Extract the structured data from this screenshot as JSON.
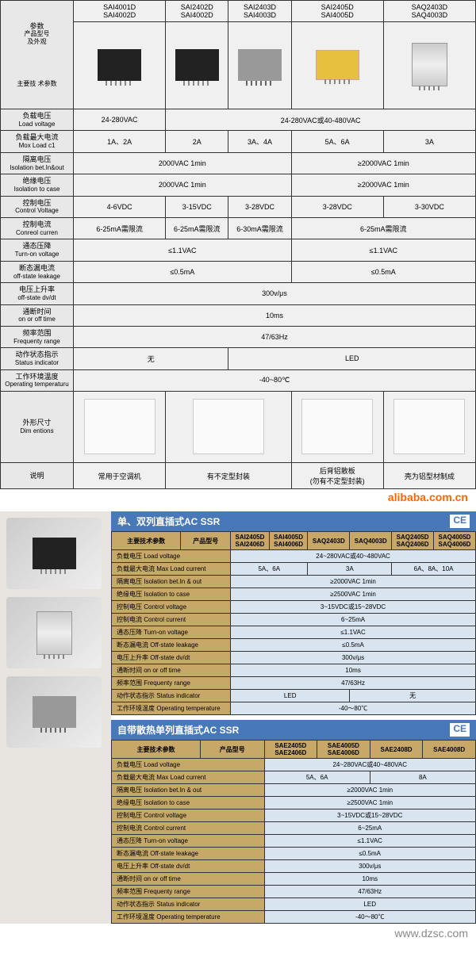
{
  "main": {
    "paramHeader": {
      "cn": "参数",
      "sub1": "产品型号",
      "sub2": "及外观",
      "sub3": "主要技\n术参数"
    },
    "models": [
      {
        "line1": "SAI4001D",
        "line2": "SAI4002D",
        "imgClass": "relay-black"
      },
      {
        "line1": "SAI2402D",
        "line2": "SAI4002D",
        "imgClass": "relay-black"
      },
      {
        "line1": "SAI2403D",
        "line2": "SAI4003D",
        "imgClass": "relay-gray"
      },
      {
        "line1": "SAI2405D",
        "line2": "SAI4005D",
        "imgClass": "relay-yellow"
      },
      {
        "line1": "SAQ2403D",
        "line2": "SAQ4003D",
        "imgClass": "relay-silver"
      }
    ],
    "rows": [
      {
        "cn": "负载电压",
        "en": "Load voltage",
        "v": [
          "24-280VAC",
          "",
          "24-280VAC或40-480VAC",
          "",
          ""
        ],
        "spans": [
          1,
          0,
          4,
          0,
          0
        ]
      },
      {
        "cn": "负载最大电流",
        "en": "Mox Load c1",
        "v": [
          "1A、2A",
          "2A",
          "3A、4A",
          "5A、6A",
          "3A"
        ],
        "spans": [
          1,
          1,
          1,
          1,
          1
        ]
      },
      {
        "cn": "隔离电压",
        "en": "Isolation bet.In&out",
        "v": [
          "2000VAC 1min",
          "",
          "",
          "≥2000VAC 1min",
          ""
        ],
        "spans": [
          3,
          0,
          0,
          2,
          0
        ]
      },
      {
        "cn": "绝缘电压",
        "en": "Isolation to case",
        "v": [
          "2000VAC 1min",
          "",
          "",
          "≥2000VAC 1min",
          ""
        ],
        "spans": [
          3,
          0,
          0,
          2,
          0
        ]
      },
      {
        "cn": "控制电压",
        "en": "Control Voltage",
        "v": [
          "4-6VDC",
          "3-15VDC",
          "3-28VDC",
          "3-28VDC",
          "3-30VDC"
        ],
        "spans": [
          1,
          1,
          1,
          1,
          1
        ]
      },
      {
        "cn": "控制电流",
        "en": "Conreol curren",
        "v": [
          "6-25mA需限流",
          "6-25mA需限流",
          "6-30mA需限流",
          "6-25mA需限流",
          ""
        ],
        "spans": [
          1,
          1,
          1,
          2,
          0
        ]
      },
      {
        "cn": "通态压降",
        "en": "Turn-on voltage",
        "v": [
          "≤1.1VAC",
          "",
          "",
          "≤1.1VAC",
          ""
        ],
        "spans": [
          3,
          0,
          0,
          2,
          0
        ]
      },
      {
        "cn": "断态漏电流",
        "en": "off-state leakage",
        "v": [
          "≤0.5mA",
          "",
          "",
          "≤0.5mA",
          ""
        ],
        "spans": [
          3,
          0,
          0,
          2,
          0
        ]
      },
      {
        "cn": "电压上升率",
        "en": "off-state dv/dt",
        "v": [
          "300v/μs",
          "",
          "",
          "",
          ""
        ],
        "spans": [
          5,
          0,
          0,
          0,
          0
        ]
      },
      {
        "cn": "通断时间",
        "en": "on or off time",
        "v": [
          "10ms",
          "",
          "",
          "",
          ""
        ],
        "spans": [
          5,
          0,
          0,
          0,
          0
        ]
      },
      {
        "cn": "频率范围",
        "en": "Frequenty range",
        "v": [
          "47/63Hz",
          "",
          "",
          "",
          ""
        ],
        "spans": [
          5,
          0,
          0,
          0,
          0
        ]
      },
      {
        "cn": "动作状态指示",
        "en": "Status indicator",
        "v": [
          "无",
          "",
          "LED",
          "",
          ""
        ],
        "spans": [
          2,
          0,
          3,
          0,
          0
        ]
      },
      {
        "cn": "工作环境温度",
        "en": "Operating temperaturu",
        "v": [
          "-40~80℃",
          "",
          "",
          "",
          ""
        ],
        "spans": [
          5,
          0,
          0,
          0,
          0
        ]
      }
    ],
    "dimRow": {
      "cn": "外形尺寸",
      "en": "Dim entions"
    },
    "noteRow": {
      "cn": "说明",
      "v": [
        "常用于空调机",
        "有不定型封装",
        "",
        "后背铝散板\n(勿有不定型封装)",
        "壳为铝型材制成"
      ],
      "spans": [
        1,
        2,
        0,
        1,
        1
      ]
    },
    "watermark": "alibaba.com.cn"
  },
  "sub1": {
    "title": "单、双列直插式AC SSR",
    "ce": "CE",
    "headerLabel": "主要技术参数",
    "modelLabel": "产品型号",
    "models": [
      "SAI2405D\nSAI2406D",
      "SAI4005D\nSAI4006D",
      "SAQ2403D",
      "SAQ4003D",
      "SAQ2405D\nSAQ2406D",
      "SAQ4005D\nSAQ4006D"
    ],
    "rows": [
      {
        "lbl": "负载电压 Load voltage",
        "v": [
          "24~280VAC或40~480VAC"
        ],
        "spans": [
          6
        ]
      },
      {
        "lbl": "负载最大电流 Max Load current",
        "v": [
          "5A、6A",
          "",
          "3A",
          "",
          "6A、8A、10A",
          ""
        ],
        "spans": [
          2,
          0,
          2,
          0,
          2,
          0
        ]
      },
      {
        "lbl": "隔离电压 Isolation bet.In & out",
        "v": [
          "≥2000VAC 1min"
        ],
        "spans": [
          6
        ]
      },
      {
        "lbl": "绝缘电压 Isolation to case",
        "v": [
          "≥2500VAC 1min"
        ],
        "spans": [
          6
        ]
      },
      {
        "lbl": "控制电压 Control voltage",
        "v": [
          "3~15VDC或15~28VDC"
        ],
        "spans": [
          6
        ]
      },
      {
        "lbl": "控制电流 Control current",
        "v": [
          "6~25mA"
        ],
        "spans": [
          6
        ]
      },
      {
        "lbl": "通态压降 Turn-on voltage",
        "v": [
          "≤1.1VAC"
        ],
        "spans": [
          6
        ]
      },
      {
        "lbl": "断态漏电流 Off-state leakage",
        "v": [
          "≤0.5mA"
        ],
        "spans": [
          6
        ]
      },
      {
        "lbl": "电压上升率 Off-state dv/dt",
        "v": [
          "300v/μs"
        ],
        "spans": [
          6
        ]
      },
      {
        "lbl": "通断时间 on or off time",
        "v": [
          "10ms"
        ],
        "spans": [
          6
        ]
      },
      {
        "lbl": "频率范围 Frequenty range",
        "v": [
          "47/63Hz"
        ],
        "spans": [
          6
        ]
      },
      {
        "lbl": "动作状态指示 Status indicator",
        "v": [
          "LED",
          "",
          "",
          "无",
          "",
          ""
        ],
        "spans": [
          3,
          0,
          0,
          3,
          0,
          0
        ]
      },
      {
        "lbl": "工作环境温度 Operating temperature",
        "v": [
          "-40～80℃"
        ],
        "spans": [
          6
        ]
      }
    ]
  },
  "sub2": {
    "title": "自带散热单列直插式AC SSR",
    "ce": "CE",
    "headerLabel": "主要技术参数",
    "modelLabel": "产品型号",
    "models": [
      "SAE2405D\nSAE2406D",
      "SAE4005D\nSAE4006D",
      "SAE2408D",
      "SAE4008D"
    ],
    "rows": [
      {
        "lbl": "负载电压 Load voltage",
        "v": [
          "24~280VAC或40~480VAC"
        ],
        "spans": [
          4
        ]
      },
      {
        "lbl": "负载最大电流 Max Load current",
        "v": [
          "5A、6A",
          "",
          "8A",
          ""
        ],
        "spans": [
          2,
          0,
          2,
          0
        ]
      },
      {
        "lbl": "隔离电压 Isolation bet.In & out",
        "v": [
          "≥2000VAC 1min"
        ],
        "spans": [
          4
        ]
      },
      {
        "lbl": "绝缘电压 Isolation to case",
        "v": [
          "≥2500VAC 1min"
        ],
        "spans": [
          4
        ]
      },
      {
        "lbl": "控制电压 Control voltage",
        "v": [
          "3~15VDC或15~28VDC"
        ],
        "spans": [
          4
        ]
      },
      {
        "lbl": "控制电流 Control current",
        "v": [
          "6~25mA"
        ],
        "spans": [
          4
        ]
      },
      {
        "lbl": "通态压降 Turn-on voltage",
        "v": [
          "≤1.1VAC"
        ],
        "spans": [
          4
        ]
      },
      {
        "lbl": "断态漏电流 Off-state leakage",
        "v": [
          "≤0.5mA"
        ],
        "spans": [
          4
        ]
      },
      {
        "lbl": "电压上升率 Off-state dv/dt",
        "v": [
          "300v/μs"
        ],
        "spans": [
          4
        ]
      },
      {
        "lbl": "通断时间 on or off time",
        "v": [
          "10ms"
        ],
        "spans": [
          4
        ]
      },
      {
        "lbl": "频率范围 Frequenty range",
        "v": [
          "47/63Hz"
        ],
        "spans": [
          4
        ]
      },
      {
        "lbl": "动作状态指示 Status indicator",
        "v": [
          "LED"
        ],
        "spans": [
          4
        ]
      },
      {
        "lbl": "工作环境温度 Operating temperature",
        "v": [
          "-40～80℃"
        ],
        "spans": [
          4
        ]
      }
    ]
  },
  "footerUrl": "www.dzsc.com"
}
